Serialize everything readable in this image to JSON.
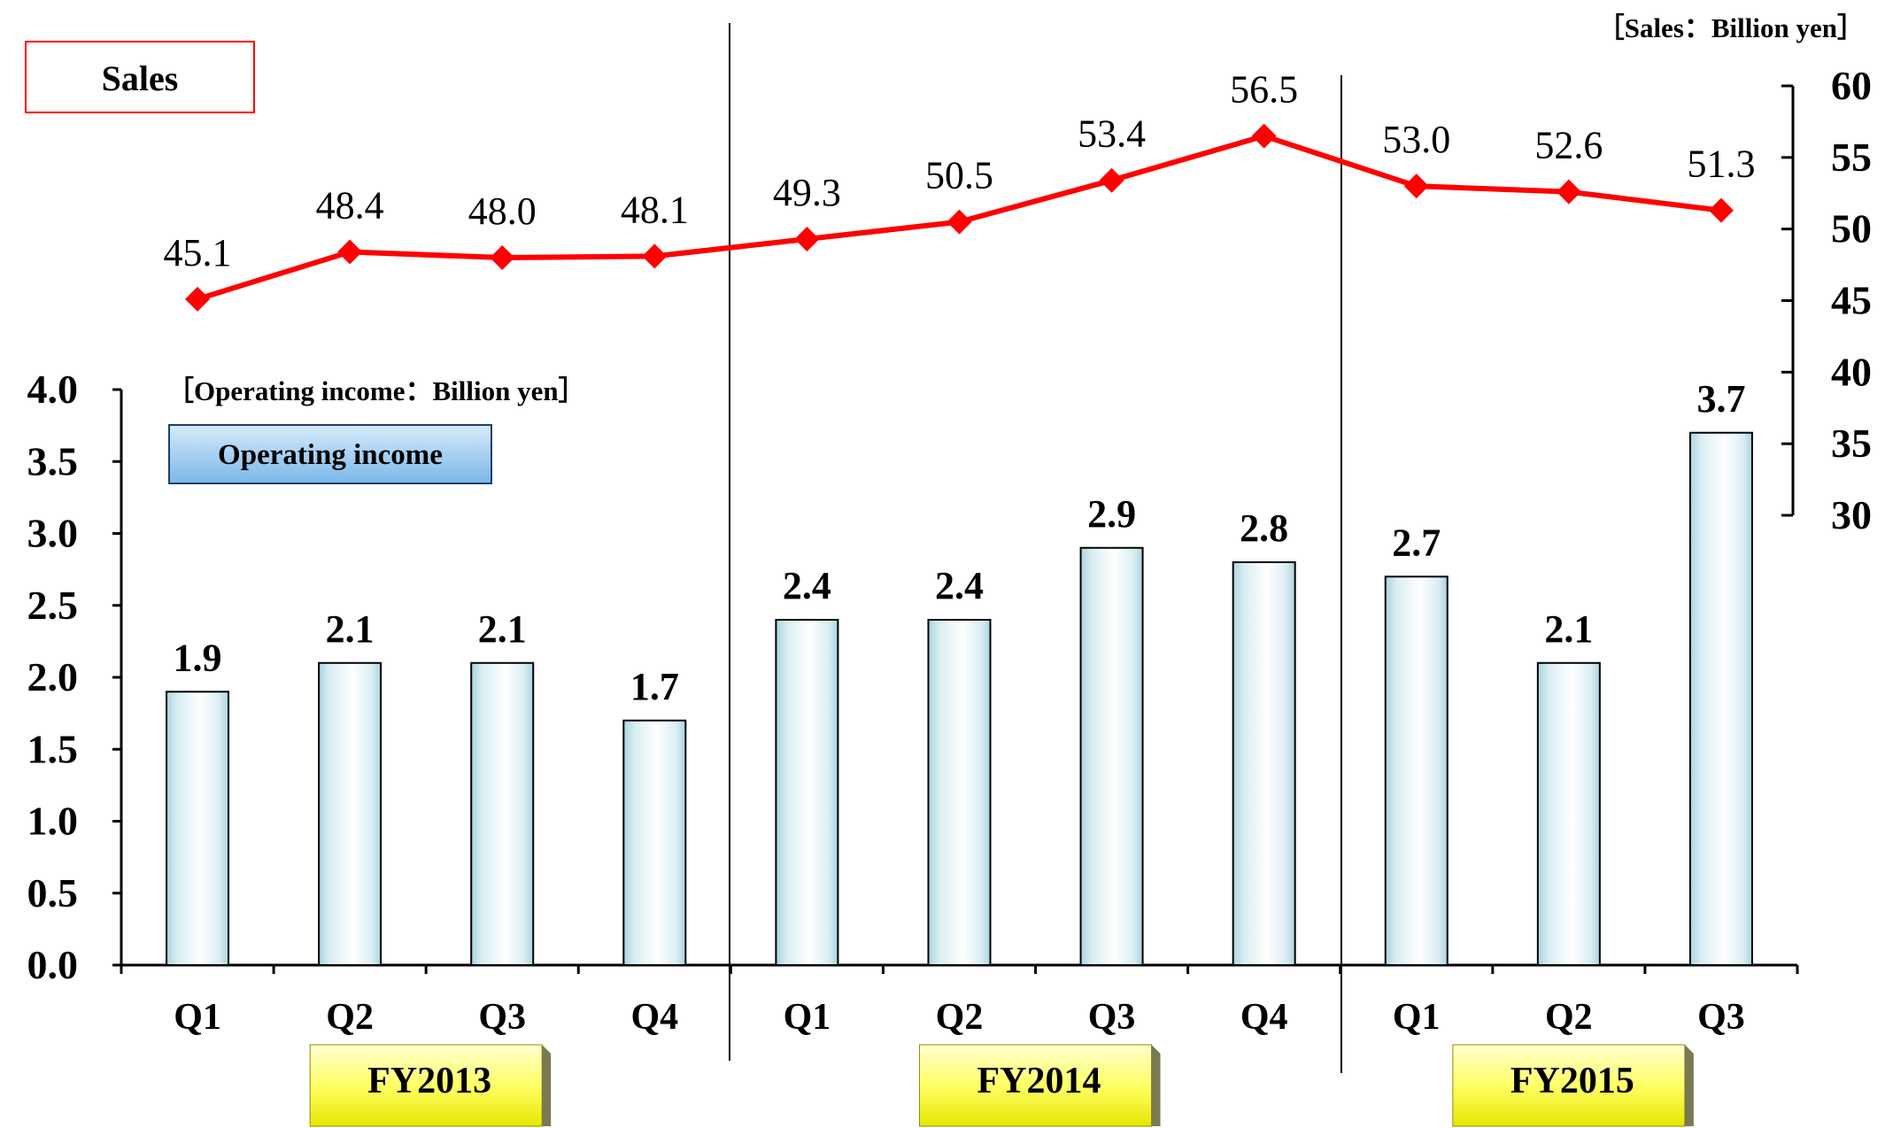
{
  "chart_data": {
    "type": "bar+line",
    "categories": [
      "Q1",
      "Q2",
      "Q3",
      "Q4",
      "Q1",
      "Q2",
      "Q3",
      "Q4",
      "Q1",
      "Q2",
      "Q3"
    ],
    "fiscal_years": [
      {
        "label": "FY2013",
        "quarters": 4
      },
      {
        "label": "FY2014",
        "quarters": 4
      },
      {
        "label": "FY2015",
        "quarters": 3
      }
    ],
    "series": [
      {
        "name": "Sales",
        "type": "line",
        "axis": "right",
        "unit_label": "［Sales：Billion yen］",
        "values": [
          45.1,
          48.4,
          48.0,
          48.1,
          49.3,
          50.5,
          53.4,
          56.5,
          53.0,
          52.6,
          51.3
        ],
        "labels": [
          "45.1",
          "48.4",
          "48.0",
          "48.1",
          "49.3",
          "50.5",
          "53.4",
          "56.5",
          "53.0",
          "52.6",
          "51.3"
        ],
        "color": "#ff0000"
      },
      {
        "name": "Operating income",
        "type": "bar",
        "axis": "left",
        "unit_label": "［Operating income：Billion yen］",
        "values": [
          1.9,
          2.1,
          2.1,
          1.7,
          2.4,
          2.4,
          2.9,
          2.8,
          2.7,
          2.1,
          3.7
        ],
        "labels": [
          "1.9",
          "2.1",
          "2.1",
          "1.7",
          "2.4",
          "2.4",
          "2.9",
          "2.8",
          "2.7",
          "2.1",
          "3.7"
        ],
        "color": "#daeef3"
      }
    ],
    "left_axis": {
      "ylim": [
        0,
        4.0
      ],
      "ticks": [
        "0.0",
        "0.5",
        "1.0",
        "1.5",
        "2.0",
        "2.5",
        "3.0",
        "3.5",
        "4.0"
      ]
    },
    "right_axis": {
      "ylim": [
        30,
        60
      ],
      "ticks": [
        "30",
        "35",
        "40",
        "45",
        "50",
        "55",
        "60"
      ]
    },
    "legend_sales": "Sales",
    "legend_operating_income": "Operating income",
    "grid": false
  }
}
